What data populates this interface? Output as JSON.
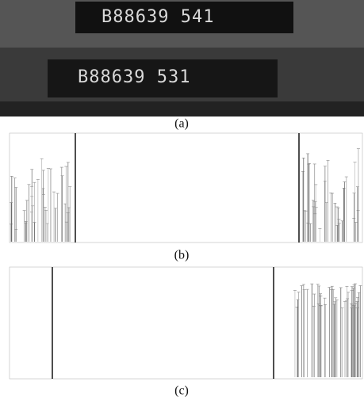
{
  "panels": [
    {
      "label": "(a)",
      "display_top": "B88639 541",
      "display_bottom": "B88639 531"
    },
    {
      "label": "(b)"
    },
    {
      "label": "(c)"
    }
  ]
}
